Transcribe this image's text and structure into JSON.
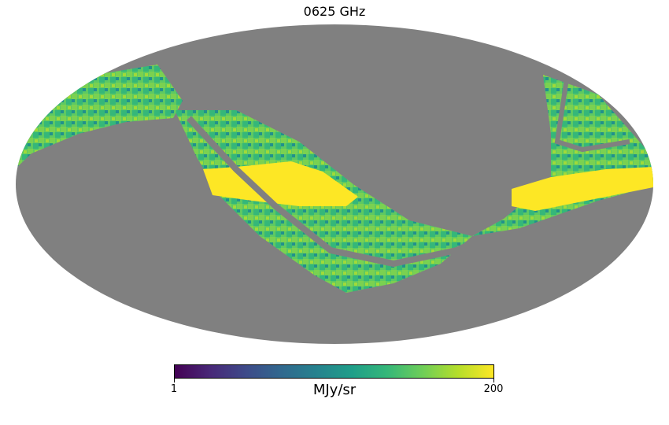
{
  "title": "0625 GHz",
  "projection": "mollweide",
  "colormap": "viridis",
  "mask_color": "#808080",
  "colorbar": {
    "min_label": "1",
    "max_label": "200",
    "unit_label": "MJy/sr"
  },
  "colors": {
    "viridis_stops": [
      "#440154",
      "#482878",
      "#3e4a89",
      "#31688e",
      "#26828e",
      "#1f9e89",
      "#35b779",
      "#6ece58",
      "#b5de2b",
      "#fde725"
    ]
  }
}
